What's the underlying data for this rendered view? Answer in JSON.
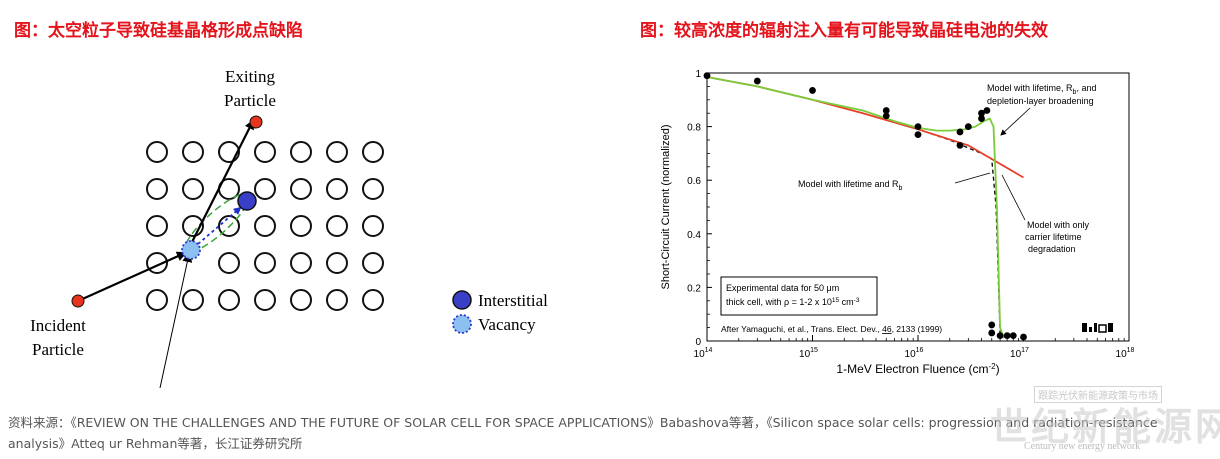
{
  "left_panel": {
    "title": "图：太空粒子导致硅基晶格形成点缺陷",
    "exiting_label": [
      "Exiting",
      "Particle"
    ],
    "incident_label": [
      "Incident",
      "Particle"
    ],
    "legend": {
      "interstitial": "Interstitial",
      "vacancy": "Vacancy"
    },
    "colors": {
      "particle": "#e8341c",
      "interstitial": "#3a3fc8",
      "vacancy": "#8cc0f0",
      "ellipse": "#3aa43a"
    }
  },
  "right_panel": {
    "title": "图：较高浓度的辐射注入量有可能导致晶硅电池的失效",
    "annotations": {
      "rb_depletion": [
        "Model with lifetime, R",
        "b",
        ", and",
        "depletion-layer broadening"
      ],
      "lifetime_rb": [
        "Model with lifetime and R",
        "b"
      ],
      "only_lifetime": [
        "Model with only",
        "carrier lifetime",
        "degradation"
      ]
    },
    "inset_box": {
      "line1": "Experimental data for 50 μm",
      "line2a": "thick cell, with ρ = 1-2 x 10",
      "line2sup": "15",
      "line2b": " cm",
      "line2sup2": "-3",
      "citation_a": "After Yamaguchi, et al., Trans. Elect. Dev., ",
      "citation_vol": "46",
      "citation_b": ", 2133 (1999)"
    }
  },
  "chart_data": {
    "type": "scatter",
    "xlabel": "1-MeV Electron Fluence (cm-2)",
    "ylabel": "Short-Circuit Current (normalized)",
    "x_scale": "log",
    "xlim": [
      100000000000000.0,
      1e+18
    ],
    "ylim": [
      0,
      1
    ],
    "x_ticks": [
      "10^14",
      "10^15",
      "10^16",
      "10^17",
      "10^18"
    ],
    "y_ticks": [
      "0",
      "0.2",
      "0.4",
      "0.6",
      "0.8",
      "1"
    ],
    "series": [
      {
        "name": "Experimental data",
        "color": "#000000",
        "points": [
          [
            100000000000000.0,
            0.99
          ],
          [
            300000000000000.0,
            0.97
          ],
          [
            1000000000000000.0,
            0.935
          ],
          [
            5000000000000000.0,
            0.86
          ],
          [
            5000000000000000.0,
            0.84
          ],
          [
            1e+16,
            0.8
          ],
          [
            1e+16,
            0.77
          ],
          [
            2.5e+16,
            0.78
          ],
          [
            2.5e+16,
            0.73
          ],
          [
            3e+16,
            0.8
          ],
          [
            4e+16,
            0.83
          ],
          [
            4e+16,
            0.85
          ],
          [
            4.5e+16,
            0.86
          ],
          [
            5e+16,
            0.06
          ],
          [
            5e+16,
            0.03
          ],
          [
            6e+16,
            0.02
          ],
          [
            7e+16,
            0.02
          ],
          [
            8e+16,
            0.02
          ],
          [
            1e+17,
            0.015
          ]
        ]
      },
      {
        "name": "Model with lifetime and Rb",
        "color": "#000000",
        "dash": true,
        "points": [
          [
            100000000000000.0,
            0.985
          ],
          [
            300000000000000.0,
            0.95
          ],
          [
            1000000000000000.0,
            0.9
          ],
          [
            3000000000000000.0,
            0.85
          ],
          [
            1e+16,
            0.79
          ],
          [
            2e+16,
            0.75
          ],
          [
            3e+16,
            0.72
          ],
          [
            4e+16,
            0.7
          ],
          [
            5e+16,
            0.68
          ],
          [
            5.5e+16,
            0.5
          ],
          [
            6e+16,
            0.02
          ],
          [
            7e+16,
            0.01
          ]
        ]
      },
      {
        "name": "Model with only carrier lifetime degradation",
        "color": "#e8402a",
        "points": [
          [
            100000000000000.0,
            0.985
          ],
          [
            300000000000000.0,
            0.95
          ],
          [
            1000000000000000.0,
            0.9
          ],
          [
            3000000000000000.0,
            0.85
          ],
          [
            1e+16,
            0.79
          ],
          [
            3e+16,
            0.73
          ],
          [
            1e+17,
            0.61
          ]
        ]
      },
      {
        "name": "Model with lifetime, Rb, and depletion-layer broadening",
        "color": "#7acc3a",
        "points": [
          [
            100000000000000.0,
            0.985
          ],
          [
            300000000000000.0,
            0.95
          ],
          [
            1000000000000000.0,
            0.9
          ],
          [
            3000000000000000.0,
            0.86
          ],
          [
            6000000000000000.0,
            0.82
          ],
          [
            1e+16,
            0.795
          ],
          [
            1.5e+16,
            0.785
          ],
          [
            2e+16,
            0.785
          ],
          [
            2.8e+16,
            0.79
          ],
          [
            3.5e+16,
            0.8
          ],
          [
            4.2e+16,
            0.82
          ],
          [
            4.8e+16,
            0.83
          ],
          [
            5.2e+16,
            0.8
          ],
          [
            5.6e+16,
            0.5
          ],
          [
            6e+16,
            0.05
          ],
          [
            6.5e+16,
            0.01
          ]
        ]
      }
    ]
  },
  "source": {
    "line1": "资料来源：《REVIEW ON THE CHALLENGES AND THE FUTURE OF SOLAR CELL FOR SPACE APPLICATIONS》Babashova等著，《Silicon space solar cells: progression and radiation-resistance",
    "line2": "analysis》Atteq ur Rehman等著，长江证券研究所"
  },
  "watermark": {
    "tagline": "跟踪光伏新能源政策与市场",
    "logo": "世纪新能源网",
    "url": "Century new energy network"
  }
}
